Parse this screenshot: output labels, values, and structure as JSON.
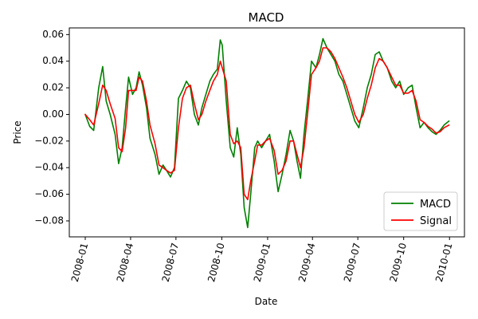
{
  "chart_data": {
    "type": "line",
    "title": "MACD",
    "xlabel": "Date",
    "ylabel": "Price",
    "xlim": [
      "2007-11-30",
      "2010-01-31"
    ],
    "ylim": [
      -0.092,
      0.065
    ],
    "x_ticks": [
      "2008-01",
      "2008-04",
      "2008-07",
      "2008-10",
      "2009-01",
      "2009-04",
      "2009-07",
      "2009-10",
      "2010-01"
    ],
    "y_ticks": [
      0.06,
      0.04,
      0.02,
      0.0,
      -0.02,
      -0.04,
      -0.06,
      -0.08
    ],
    "y_tick_labels": [
      "0.06",
      "0.04",
      "0.02",
      "0.00",
      "−0.02",
      "−0.04",
      "−0.06",
      "−0.08"
    ],
    "legend_position": "lower-right",
    "grid": false,
    "series": [
      {
        "name": "MACD",
        "color": "#008000",
        "x": [
          "2008-01-01",
          "2008-01-10",
          "2008-01-18",
          "2008-01-28",
          "2008-02-05",
          "2008-02-12",
          "2008-02-20",
          "2008-03-01",
          "2008-03-08",
          "2008-03-15",
          "2008-03-22",
          "2008-03-28",
          "2008-04-05",
          "2008-04-12",
          "2008-04-18",
          "2008-04-25",
          "2008-05-03",
          "2008-05-10",
          "2008-05-20",
          "2008-05-28",
          "2008-06-05",
          "2008-06-12",
          "2008-06-20",
          "2008-06-28",
          "2008-07-06",
          "2008-07-14",
          "2008-07-22",
          "2008-07-30",
          "2008-08-07",
          "2008-08-15",
          "2008-08-22",
          "2008-08-30",
          "2008-09-07",
          "2008-09-14",
          "2008-09-22",
          "2008-09-28",
          "2008-10-02",
          "2008-10-10",
          "2008-10-18",
          "2008-10-25",
          "2008-11-01",
          "2008-11-08",
          "2008-11-15",
          "2008-11-22",
          "2008-11-28",
          "2008-12-06",
          "2008-12-12",
          "2008-12-20",
          "2008-12-28",
          "2009-01-05",
          "2009-01-14",
          "2009-01-22",
          "2009-01-30",
          "2009-02-07",
          "2009-02-15",
          "2009-02-22",
          "2009-03-01",
          "2009-03-08",
          "2009-03-15",
          "2009-03-22",
          "2009-03-30",
          "2009-04-08",
          "2009-04-15",
          "2009-04-22",
          "2009-04-30",
          "2009-05-08",
          "2009-05-16",
          "2009-05-24",
          "2009-06-01",
          "2009-06-09",
          "2009-06-17",
          "2009-06-25",
          "2009-07-03",
          "2009-07-12",
          "2009-07-20",
          "2009-07-28",
          "2009-08-05",
          "2009-08-13",
          "2009-08-21",
          "2009-08-29",
          "2009-09-07",
          "2009-09-15",
          "2009-09-23",
          "2009-10-01",
          "2009-10-10",
          "2009-10-18",
          "2009-10-26",
          "2009-11-03",
          "2009-11-11",
          "2009-11-19",
          "2009-11-27",
          "2009-12-05",
          "2009-12-13",
          "2009-12-21",
          "2009-12-31"
        ],
        "values": [
          0.0,
          -0.009,
          -0.012,
          0.02,
          0.036,
          0.01,
          0.0,
          -0.015,
          -0.037,
          -0.025,
          0.005,
          0.028,
          0.015,
          0.02,
          0.032,
          0.022,
          0.005,
          -0.018,
          -0.03,
          -0.045,
          -0.038,
          -0.042,
          -0.047,
          -0.04,
          0.012,
          0.018,
          0.025,
          0.02,
          0.0,
          -0.008,
          0.005,
          0.015,
          0.025,
          0.03,
          0.034,
          0.056,
          0.052,
          0.01,
          -0.025,
          -0.032,
          -0.01,
          -0.03,
          -0.07,
          -0.085,
          -0.06,
          -0.025,
          -0.02,
          -0.025,
          -0.02,
          -0.015,
          -0.035,
          -0.058,
          -0.045,
          -0.03,
          -0.012,
          -0.02,
          -0.035,
          -0.048,
          -0.015,
          0.01,
          0.04,
          0.035,
          0.045,
          0.057,
          0.05,
          0.045,
          0.04,
          0.03,
          0.025,
          0.015,
          0.005,
          -0.005,
          -0.01,
          0.005,
          0.02,
          0.03,
          0.045,
          0.047,
          0.04,
          0.035,
          0.025,
          0.02,
          0.025,
          0.015,
          0.02,
          0.022,
          0.005,
          -0.01,
          -0.006,
          -0.01,
          -0.013,
          -0.015,
          -0.012,
          -0.008,
          -0.005
        ]
      },
      {
        "name": "Signal",
        "color": "#ff0000",
        "x": [
          "2008-01-01",
          "2008-01-10",
          "2008-01-18",
          "2008-01-28",
          "2008-02-05",
          "2008-02-12",
          "2008-02-20",
          "2008-03-01",
          "2008-03-08",
          "2008-03-15",
          "2008-03-22",
          "2008-03-28",
          "2008-04-05",
          "2008-04-12",
          "2008-04-18",
          "2008-04-25",
          "2008-05-03",
          "2008-05-10",
          "2008-05-20",
          "2008-05-28",
          "2008-06-05",
          "2008-06-12",
          "2008-06-20",
          "2008-06-28",
          "2008-07-06",
          "2008-07-14",
          "2008-07-22",
          "2008-07-30",
          "2008-08-07",
          "2008-08-15",
          "2008-08-22",
          "2008-08-30",
          "2008-09-07",
          "2008-09-14",
          "2008-09-22",
          "2008-09-28",
          "2008-10-02",
          "2008-10-10",
          "2008-10-18",
          "2008-10-25",
          "2008-11-01",
          "2008-11-08",
          "2008-11-15",
          "2008-11-22",
          "2008-11-28",
          "2008-12-06",
          "2008-12-12",
          "2008-12-20",
          "2008-12-28",
          "2009-01-05",
          "2009-01-14",
          "2009-01-22",
          "2009-01-30",
          "2009-02-07",
          "2009-02-15",
          "2009-02-22",
          "2009-03-01",
          "2009-03-08",
          "2009-03-15",
          "2009-03-22",
          "2009-03-30",
          "2009-04-08",
          "2009-04-15",
          "2009-04-22",
          "2009-04-30",
          "2009-05-08",
          "2009-05-16",
          "2009-05-24",
          "2009-06-01",
          "2009-06-09",
          "2009-06-17",
          "2009-06-25",
          "2009-07-03",
          "2009-07-12",
          "2009-07-20",
          "2009-07-28",
          "2009-08-05",
          "2009-08-13",
          "2009-08-21",
          "2009-08-29",
          "2009-09-07",
          "2009-09-15",
          "2009-09-23",
          "2009-10-01",
          "2009-10-10",
          "2009-10-18",
          "2009-10-26",
          "2009-11-03",
          "2009-11-11",
          "2009-11-19",
          "2009-11-27",
          "2009-12-05",
          "2009-12-13",
          "2009-12-21",
          "2009-12-31"
        ],
        "values": [
          0.0,
          -0.004,
          -0.008,
          0.008,
          0.022,
          0.018,
          0.008,
          -0.003,
          -0.025,
          -0.028,
          -0.01,
          0.018,
          0.018,
          0.018,
          0.028,
          0.025,
          0.01,
          -0.008,
          -0.022,
          -0.038,
          -0.04,
          -0.042,
          -0.044,
          -0.042,
          -0.01,
          0.012,
          0.02,
          0.022,
          0.008,
          -0.004,
          0.0,
          0.01,
          0.018,
          0.025,
          0.03,
          0.04,
          0.035,
          0.025,
          -0.015,
          -0.022,
          -0.02,
          -0.025,
          -0.06,
          -0.064,
          -0.05,
          -0.035,
          -0.023,
          -0.023,
          -0.02,
          -0.018,
          -0.027,
          -0.045,
          -0.042,
          -0.035,
          -0.02,
          -0.02,
          -0.03,
          -0.04,
          -0.025,
          0.0,
          0.03,
          0.035,
          0.04,
          0.05,
          0.05,
          0.047,
          0.042,
          0.035,
          0.028,
          0.02,
          0.01,
          0.0,
          -0.006,
          0.0,
          0.012,
          0.022,
          0.035,
          0.042,
          0.04,
          0.035,
          0.028,
          0.022,
          0.022,
          0.016,
          0.016,
          0.018,
          0.01,
          -0.004,
          -0.006,
          -0.009,
          -0.011,
          -0.014,
          -0.013,
          -0.01,
          -0.008
        ]
      }
    ]
  }
}
